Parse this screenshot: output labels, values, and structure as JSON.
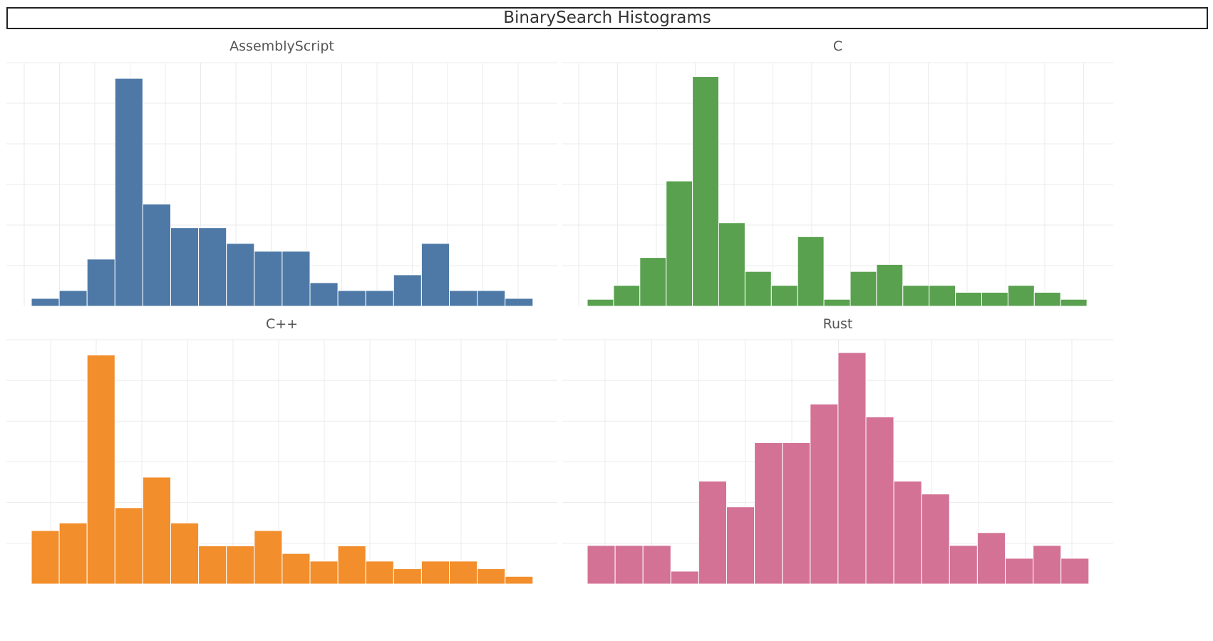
{
  "title": "BinarySearch Histograms",
  "chart_data": [
    {
      "type": "bar",
      "title": "AssemblyScript",
      "color": "#4e79a7",
      "values": [
        1,
        2,
        6,
        29,
        13,
        10,
        10,
        8,
        7,
        7,
        3,
        2,
        2,
        4,
        8,
        2,
        2,
        1
      ],
      "ylim": [
        0,
        31
      ]
    },
    {
      "type": "bar",
      "title": "C",
      "color": "#59a14f",
      "values": [
        1,
        3,
        7,
        18,
        33,
        12,
        5,
        3,
        10,
        1,
        5,
        6,
        3,
        3,
        2,
        2,
        3,
        2,
        1
      ],
      "ylim": [
        0,
        35
      ]
    },
    {
      "type": "bar",
      "title": "C++",
      "color": "#f28e2b",
      "values": [
        7,
        8,
        30,
        10,
        14,
        8,
        5,
        5,
        7,
        4,
        3,
        5,
        3,
        2,
        3,
        3,
        2,
        1
      ],
      "ylim": [
        0,
        32
      ]
    },
    {
      "type": "bar",
      "title": "Rust",
      "color": "#d37295",
      "values": [
        3,
        3,
        3,
        1,
        8,
        6,
        11,
        11,
        14,
        18,
        13,
        8,
        7,
        3,
        4,
        2,
        3,
        2
      ],
      "ylim": [
        0,
        19
      ]
    }
  ]
}
